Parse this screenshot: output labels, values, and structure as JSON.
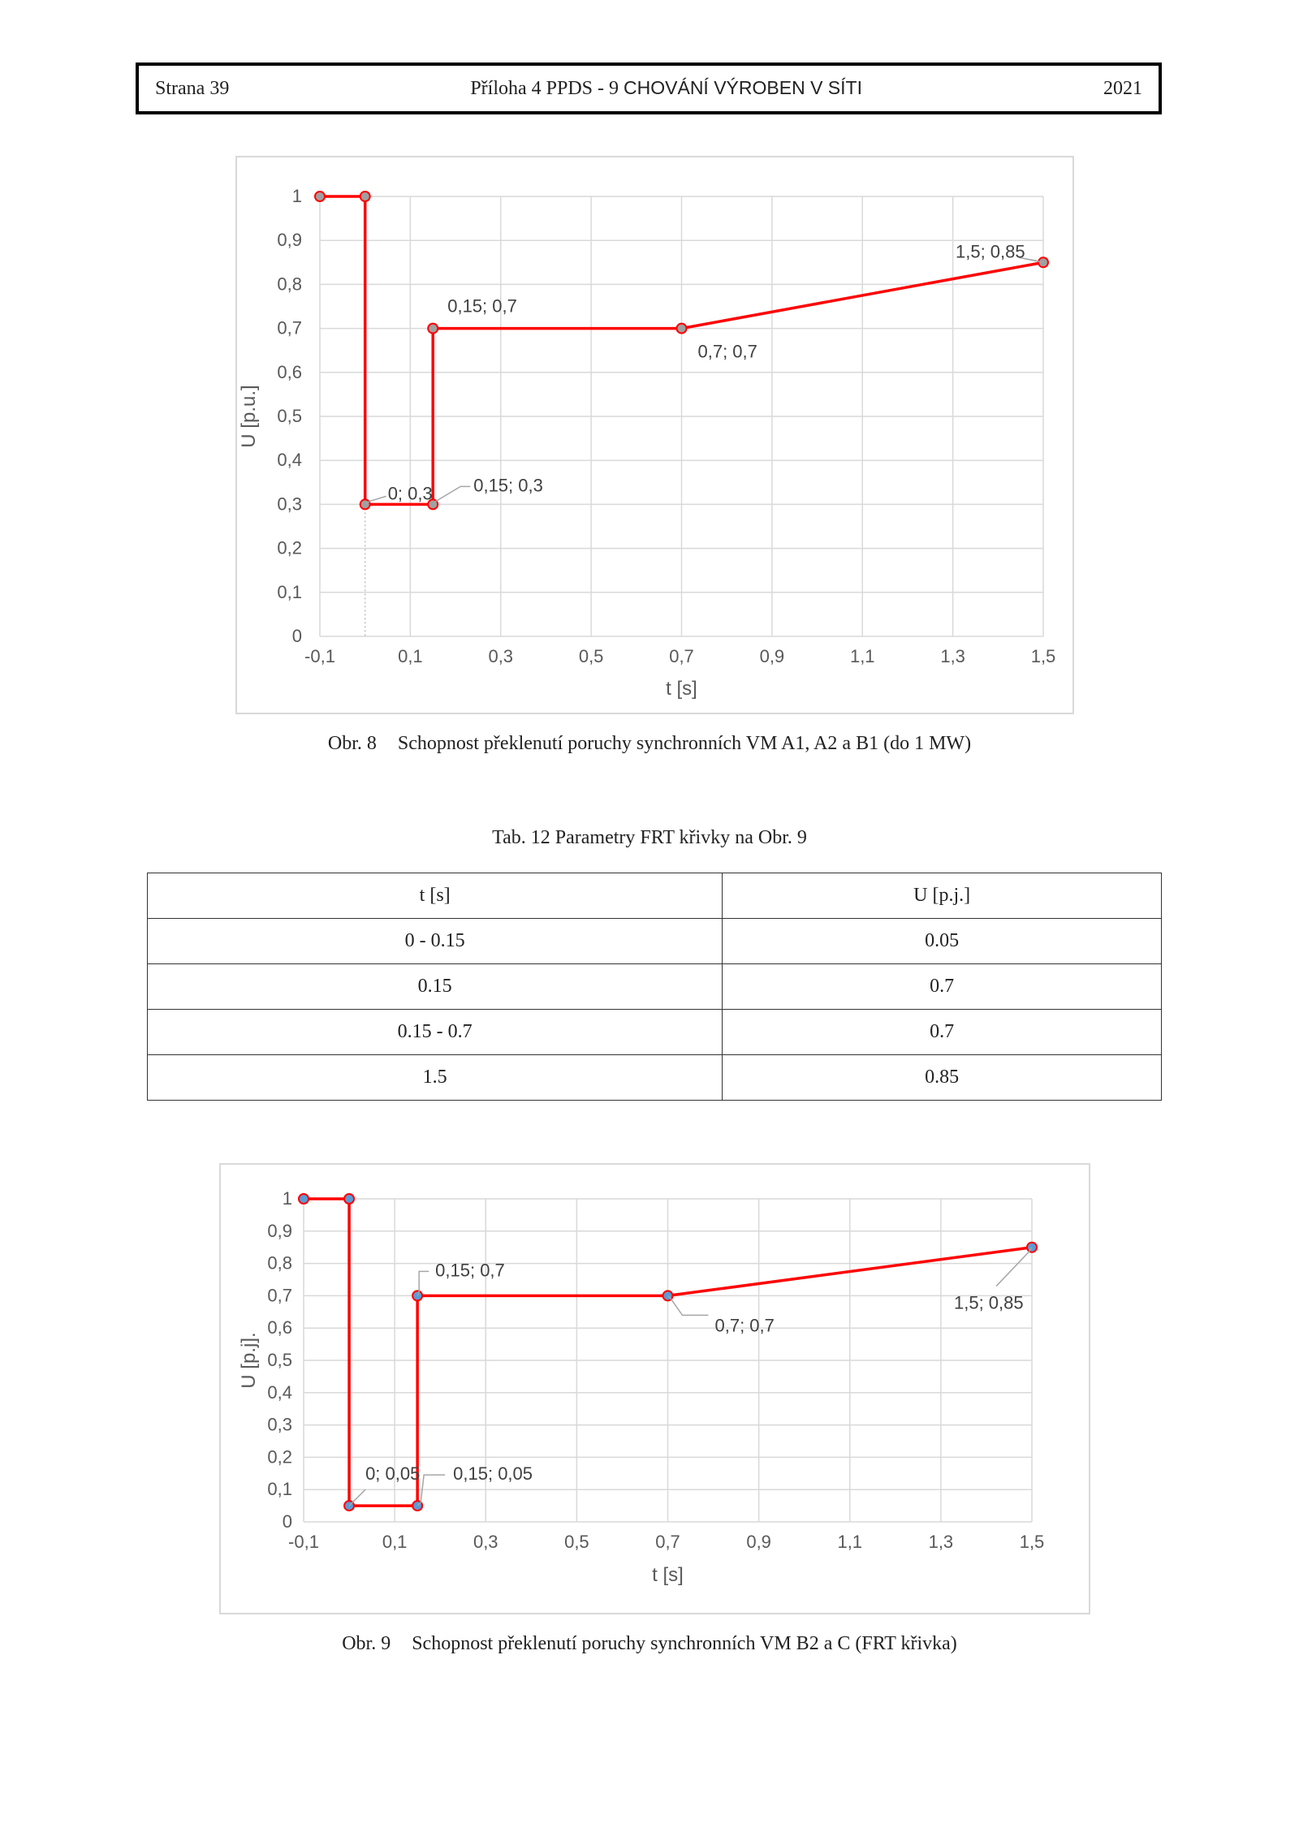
{
  "header": {
    "page": "Strana 39",
    "title_prefix": "Příloha 4 PPDS - 9 ",
    "title_caps": "CHOVÁNÍ VÝROBEN V SÍTI",
    "year": "2021"
  },
  "figure8": {
    "caption_num": "Obr. 8",
    "caption_text": "Schopnost překlenutí poruchy synchronních VM A1, A2 a B1 (do 1 MW)"
  },
  "table12": {
    "title": "Tab. 12 Parametry FRT křivky na Obr. 9",
    "headers": [
      "t [s]",
      "U [p.j.]"
    ],
    "rows": [
      [
        "0 - 0.15",
        "0.05"
      ],
      [
        "0.15",
        "0.7"
      ],
      [
        "0.15 - 0.7",
        "0.7"
      ],
      [
        "1.5",
        "0.85"
      ]
    ]
  },
  "figure9": {
    "caption_num": "Obr. 9",
    "caption_text": "Schopnost překlenutí poruchy synchronních VM B2 a C (FRT křivka)"
  },
  "chart_data": [
    {
      "type": "line",
      "xlabel": "t [s]",
      "ylabel": "U [p.u.]",
      "xlim": [
        -0.1,
        1.5
      ],
      "ylim": [
        0,
        1
      ],
      "x_ticks": [
        "-0,1",
        "0,1",
        "0,3",
        "0,5",
        "0,7",
        "0,9",
        "1,1",
        "1,3",
        "1,5"
      ],
      "y_ticks": [
        "0",
        "0,1",
        "0,2",
        "0,3",
        "0,4",
        "0,5",
        "0,6",
        "0,7",
        "0,8",
        "0,9",
        "1"
      ],
      "grid": true,
      "line_color": "#ff0000",
      "marker_color": "#a0a0a0",
      "series": [
        {
          "x": [
            -0.1,
            0,
            0,
            0.15,
            0.15,
            0.7,
            1.5
          ],
          "y": [
            1,
            1,
            0.3,
            0.3,
            0.7,
            0.7,
            0.85
          ]
        }
      ],
      "annotations": [
        {
          "text": "1,5; 0,85",
          "x": 1.5,
          "y": 0.85
        },
        {
          "text": "0,15; 0,7",
          "x": 0.15,
          "y": 0.7
        },
        {
          "text": "0,7; 0,7",
          "x": 0.7,
          "y": 0.7
        },
        {
          "text": "0; 0,3",
          "x": 0,
          "y": 0.3
        },
        {
          "text": "0,15; 0,3",
          "x": 0.15,
          "y": 0.3
        }
      ]
    },
    {
      "type": "line",
      "xlabel": "t [s]",
      "ylabel": "U [p.j].",
      "xlim": [
        -0.1,
        1.5
      ],
      "ylim": [
        0,
        1
      ],
      "x_ticks": [
        "-0,1",
        "0,1",
        "0,3",
        "0,5",
        "0,7",
        "0,9",
        "1,1",
        "1,3",
        "1,5"
      ],
      "y_ticks": [
        "0",
        "0,1",
        "0,2",
        "0,3",
        "0,4",
        "0,5",
        "0,6",
        "0,7",
        "0,8",
        "0,9",
        "1"
      ],
      "grid": true,
      "line_color": "#ff0000",
      "marker_color": "#5b9bd5",
      "series": [
        {
          "x": [
            -0.1,
            0,
            0,
            0.15,
            0.15,
            0.7,
            1.5
          ],
          "y": [
            1,
            1,
            0.05,
            0.05,
            0.7,
            0.7,
            0.85
          ]
        }
      ],
      "annotations": [
        {
          "text": "0,15; 0,7",
          "x": 0.15,
          "y": 0.7
        },
        {
          "text": "0,7; 0,7",
          "x": 0.7,
          "y": 0.7
        },
        {
          "text": "1,5; 0,85",
          "x": 1.5,
          "y": 0.85
        },
        {
          "text": "0; 0,05",
          "x": 0,
          "y": 0.05
        },
        {
          "text": "0,15; 0,05",
          "x": 0.15,
          "y": 0.05
        }
      ]
    }
  ]
}
